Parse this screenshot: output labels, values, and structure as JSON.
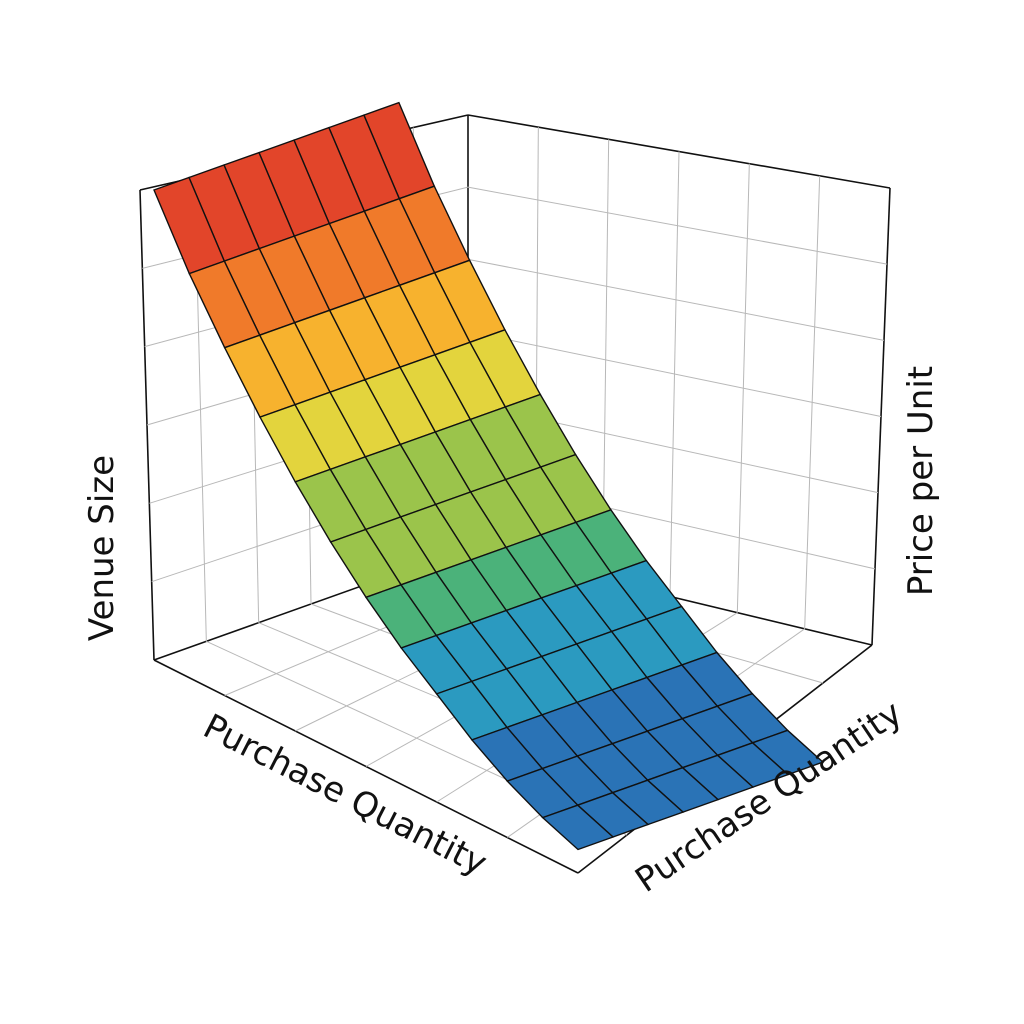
{
  "chart_data": {
    "type": "surface",
    "axes": {
      "x_label": "Purchase Quantity",
      "y_label": "Purchase Quantity",
      "z_label": "Price per Unit",
      "side_label": "Venue Size"
    },
    "grid": true,
    "colormap": "jet",
    "colormap_colors": [
      "#1f3c8f",
      "#2a73b6",
      "#2b9ac0",
      "#4bb27a",
      "#9bc44b",
      "#e3d43d",
      "#f7b22e",
      "#f07a2a",
      "#e2452a",
      "#d42525"
    ],
    "surface": {
      "rows": 7,
      "cols": 12,
      "z_values_by_column": [
        1.0,
        0.86,
        0.74,
        0.63,
        0.53,
        0.44,
        0.36,
        0.29,
        0.23,
        0.17,
        0.12,
        0.08,
        0.05
      ],
      "z_range": [
        0,
        1
      ]
    }
  }
}
